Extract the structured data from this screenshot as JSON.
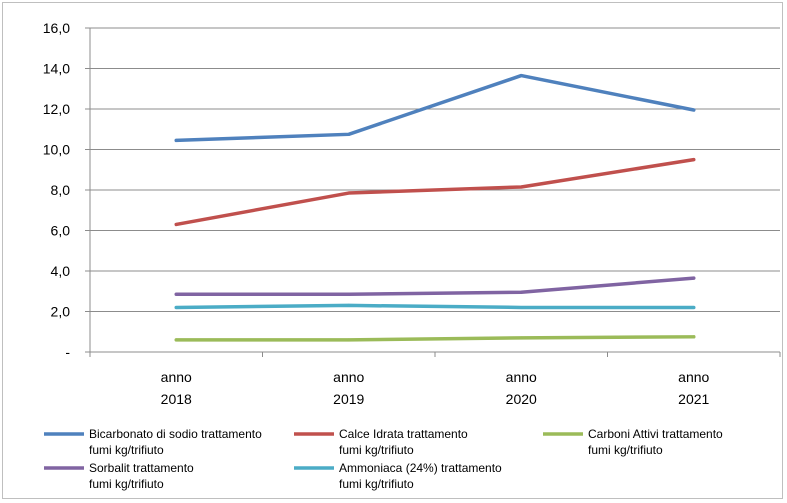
{
  "chart_data": {
    "type": "line",
    "categories": [
      [
        "anno",
        "2018"
      ],
      [
        "anno",
        "2019"
      ],
      [
        "anno",
        "2020"
      ],
      [
        "anno",
        "2021"
      ]
    ],
    "ylim": [
      0,
      16
    ],
    "yticks": [
      {
        "value": 0,
        "label": "-"
      },
      {
        "value": 2,
        "label": "2,0"
      },
      {
        "value": 4,
        "label": "4,0"
      },
      {
        "value": 6,
        "label": "6,0"
      },
      {
        "value": 8,
        "label": "8,0"
      },
      {
        "value": 10,
        "label": "10,0"
      },
      {
        "value": 12,
        "label": "12,0"
      },
      {
        "value": 14,
        "label": "14,0"
      },
      {
        "value": 16,
        "label": "16,0"
      }
    ],
    "grid": true,
    "legend_position": "bottom",
    "series": [
      {
        "name": [
          "Bicarbonato di sodio trattamento",
          "fumi kg/trifiuto"
        ],
        "color": "#4f81bd",
        "values": [
          10.45,
          10.75,
          13.65,
          11.95
        ]
      },
      {
        "name": [
          "Calce Idrata trattamento",
          "fumi kg/trifiuto"
        ],
        "color": "#c0504d",
        "values": [
          6.3,
          7.85,
          8.15,
          9.5
        ]
      },
      {
        "name": [
          "Carboni Attivi trattamento",
          "fumi kg/trifiuto"
        ],
        "color": "#9bbb59",
        "values": [
          0.6,
          0.6,
          0.7,
          0.75
        ]
      },
      {
        "name": [
          "Sorbalit trattamento",
          "fumi kg/trifiuto"
        ],
        "color": "#8064a2",
        "values": [
          2.85,
          2.85,
          2.95,
          3.65
        ]
      },
      {
        "name": [
          "Ammoniaca (24%) trattamento",
          "fumi kg/trifiuto"
        ],
        "color": "#4bacc6",
        "values": [
          2.2,
          2.3,
          2.2,
          2.2
        ]
      }
    ]
  }
}
